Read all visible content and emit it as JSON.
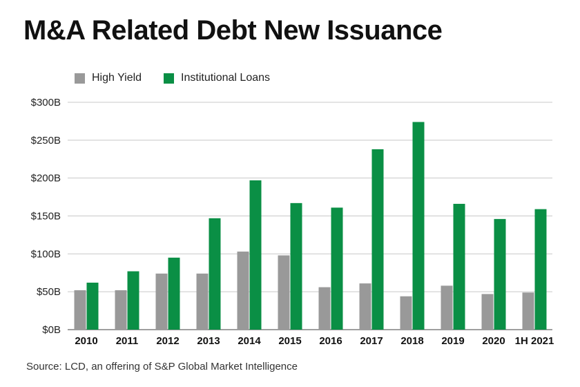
{
  "chart_data": {
    "type": "bar",
    "title": "M&A Related Debt New Issuance",
    "categories": [
      "2010",
      "2011",
      "2012",
      "2013",
      "2014",
      "2015",
      "2016",
      "2017",
      "2018",
      "2019",
      "2020",
      "1H 2021"
    ],
    "series": [
      {
        "name": "High Yield",
        "color": "#999999",
        "values": [
          52,
          52,
          74,
          74,
          103,
          98,
          56,
          61,
          44,
          58,
          47,
          49
        ]
      },
      {
        "name": "Institutional Loans",
        "color": "#0a8f45",
        "values": [
          62,
          77,
          95,
          147,
          197,
          167,
          161,
          238,
          274,
          166,
          146,
          159
        ]
      }
    ],
    "yticks": [
      "$0B",
      "$50B",
      "$100B",
      "$150B",
      "$200B",
      "$250B",
      "$300B"
    ],
    "ytick_values": [
      0,
      50,
      100,
      150,
      200,
      250,
      300
    ],
    "ylim": [
      0,
      300
    ],
    "grid": true,
    "legend_position": "top-left",
    "source": "Source: LCD, an offering of S&P Global Market Intelligence"
  }
}
